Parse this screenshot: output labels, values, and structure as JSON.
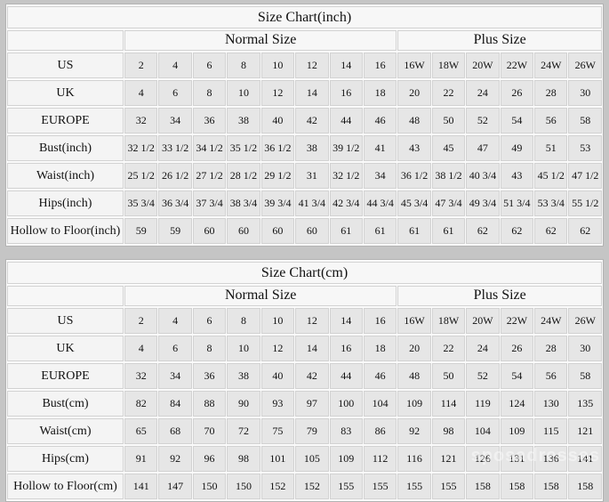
{
  "page": {
    "watermark": "sposadresses",
    "colors": {
      "page_background": "#c5c5c5",
      "data_cell_background": "#e6e6e6",
      "header_cell_background": "#f6f6f6",
      "text": "#111111"
    }
  },
  "tables": [
    {
      "title": "Size Chart(inch)",
      "groups": [
        {
          "label": "Normal Size",
          "span": 8
        },
        {
          "label": "Plus Size",
          "span": 6
        }
      ],
      "rows": [
        {
          "label": "US",
          "values": [
            "2",
            "4",
            "6",
            "8",
            "10",
            "12",
            "14",
            "16",
            "16W",
            "18W",
            "20W",
            "22W",
            "24W",
            "26W"
          ]
        },
        {
          "label": "UK",
          "values": [
            "4",
            "6",
            "8",
            "10",
            "12",
            "14",
            "16",
            "18",
            "20",
            "22",
            "24",
            "26",
            "28",
            "30"
          ]
        },
        {
          "label": "EUROPE",
          "values": [
            "32",
            "34",
            "36",
            "38",
            "40",
            "42",
            "44",
            "46",
            "48",
            "50",
            "52",
            "54",
            "56",
            "58"
          ]
        },
        {
          "label": "Bust(inch)",
          "values": [
            "32 1/2",
            "33 1/2",
            "34 1/2",
            "35 1/2",
            "36 1/2",
            "38",
            "39 1/2",
            "41",
            "43",
            "45",
            "47",
            "49",
            "51",
            "53"
          ]
        },
        {
          "label": "Waist(inch)",
          "values": [
            "25 1/2",
            "26 1/2",
            "27 1/2",
            "28 1/2",
            "29 1/2",
            "31",
            "32 1/2",
            "34",
            "36 1/2",
            "38 1/2",
            "40 3/4",
            "43",
            "45 1/2",
            "47 1/2"
          ]
        },
        {
          "label": "Hips(inch)",
          "values": [
            "35 3/4",
            "36 3/4",
            "37 3/4",
            "38 3/4",
            "39 3/4",
            "41 3/4",
            "42 3/4",
            "44 3/4",
            "45 3/4",
            "47 3/4",
            "49 3/4",
            "51 3/4",
            "53 3/4",
            "55 1/2"
          ]
        },
        {
          "label": "Hollow to Floor(inch)",
          "values": [
            "59",
            "59",
            "60",
            "60",
            "60",
            "60",
            "61",
            "61",
            "61",
            "61",
            "62",
            "62",
            "62",
            "62"
          ]
        }
      ]
    },
    {
      "title": "Size Chart(cm)",
      "groups": [
        {
          "label": "Normal Size",
          "span": 8
        },
        {
          "label": "Plus Size",
          "span": 6
        }
      ],
      "rows": [
        {
          "label": "US",
          "values": [
            "2",
            "4",
            "6",
            "8",
            "10",
            "12",
            "14",
            "16",
            "16W",
            "18W",
            "20W",
            "22W",
            "24W",
            "26W"
          ]
        },
        {
          "label": "UK",
          "values": [
            "4",
            "6",
            "8",
            "10",
            "12",
            "14",
            "16",
            "18",
            "20",
            "22",
            "24",
            "26",
            "28",
            "30"
          ]
        },
        {
          "label": "EUROPE",
          "values": [
            "32",
            "34",
            "36",
            "38",
            "40",
            "42",
            "44",
            "46",
            "48",
            "50",
            "52",
            "54",
            "56",
            "58"
          ]
        },
        {
          "label": "Bust(cm)",
          "values": [
            "82",
            "84",
            "88",
            "90",
            "93",
            "97",
            "100",
            "104",
            "109",
            "114",
            "119",
            "124",
            "130",
            "135"
          ]
        },
        {
          "label": "Waist(cm)",
          "values": [
            "65",
            "68",
            "70",
            "72",
            "75",
            "79",
            "83",
            "86",
            "92",
            "98",
            "104",
            "109",
            "115",
            "121"
          ]
        },
        {
          "label": "Hips(cm)",
          "values": [
            "91",
            "92",
            "96",
            "98",
            "101",
            "105",
            "109",
            "112",
            "116",
            "121",
            "126",
            "131",
            "136",
            "141"
          ]
        },
        {
          "label": "Hollow to Floor(cm)",
          "values": [
            "141",
            "147",
            "150",
            "150",
            "152",
            "152",
            "155",
            "155",
            "155",
            "155",
            "158",
            "158",
            "158",
            "158"
          ]
        }
      ]
    }
  ]
}
